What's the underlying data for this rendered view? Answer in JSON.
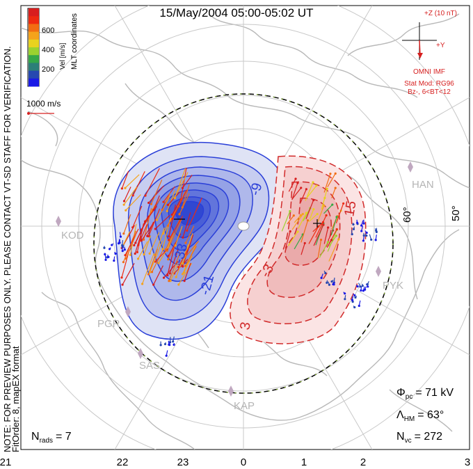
{
  "header": {
    "title": "15/May/2004 05:00-05:02 UT"
  },
  "colorbar": {
    "label": "Vel [m/s]",
    "ticks": [
      "600",
      "400",
      "200"
    ],
    "colors": [
      "#d81e1e",
      "#ee2a10",
      "#f26d12",
      "#f5a31b",
      "#e8d21f",
      "#9bd22f",
      "#35a847",
      "#2c7f78",
      "#2648b0",
      "#1a1ae6"
    ]
  },
  "coords_label": "MLT coordinates",
  "ref_vector": {
    "label": "1000 m/s",
    "color": "#d62020"
  },
  "imf": {
    "z_label": "+Z (10 nT)",
    "y_label": "+Y",
    "source": "OMNI IMF",
    "model": "Stat Mod: RG96",
    "condition": "Bz-, 6<BT<12",
    "color": "#d61e1e"
  },
  "side_note": {
    "line1": "NOTE: FOR PREVIEW PURPOSES ONLY. PLEASE CONTACT VT-SD STAFF FOR VERIFICATION.",
    "line2": "FitOrder: 8, mapEX format"
  },
  "latitude_labels": [
    "60°",
    "50°"
  ],
  "contour_labels": [
    "-9",
    "-33",
    "-21",
    "3",
    "-3",
    "15"
  ],
  "stations": [
    "KOD",
    "PGR",
    "SAS",
    "KAP",
    "PYK",
    "HAN"
  ],
  "stats": {
    "phi_symbol": "Φ",
    "phi_sub": "pc",
    "phi_value": "= 71 kV",
    "lambda_symbol": "Λ",
    "lambda_sub": "HM",
    "lambda_value": "= 63°",
    "nvc_symbol": "N",
    "nvc_sub": "vc",
    "nvc_value": "= 272",
    "nrads_symbol": "N",
    "nrads_sub": "rads",
    "nrads_value": "= 7"
  },
  "mlt_axis": [
    "21",
    "22",
    "23",
    "0",
    "1",
    "2",
    "3"
  ],
  "colors": {
    "negative_cell": "#2a3fd8",
    "positive_cell": "#d12a2a",
    "continent": "#b8b8b8",
    "grid": "#c8c8c8"
  }
}
